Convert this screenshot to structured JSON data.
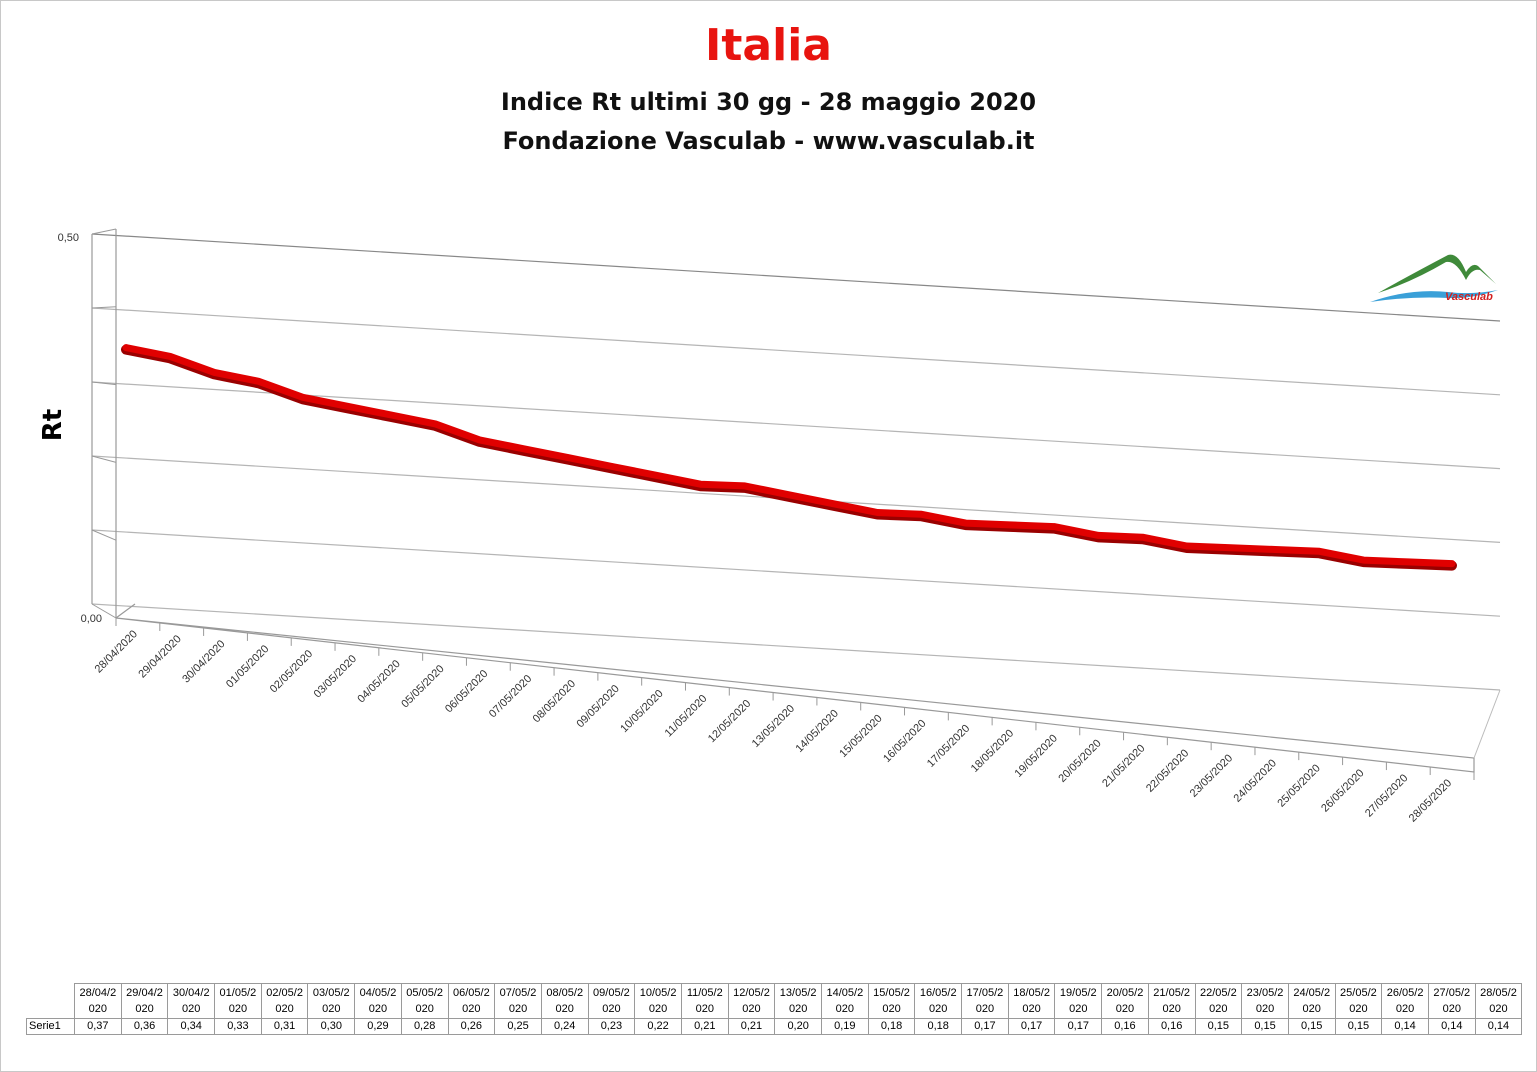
{
  "header": {
    "title": "Italia",
    "subtitle": "Indice Rt ultimi 30 gg - 28 maggio 2020",
    "source": "Fondazione Vasculab - www.vasculab.it"
  },
  "logo": {
    "text": "Vasculab"
  },
  "chart_data": {
    "type": "line",
    "style": "3d-line",
    "ylabel": "Rt",
    "ylim": [
      0,
      0.5
    ],
    "y_ticks": [
      "0,00",
      "0,50"
    ],
    "grid": true,
    "color": "#e00000",
    "categories": [
      "28/04/2020",
      "29/04/2020",
      "30/04/2020",
      "01/05/2020",
      "02/05/2020",
      "03/05/2020",
      "04/05/2020",
      "05/05/2020",
      "06/05/2020",
      "07/05/2020",
      "08/05/2020",
      "09/05/2020",
      "10/05/2020",
      "11/05/2020",
      "12/05/2020",
      "13/05/2020",
      "14/05/2020",
      "15/05/2020",
      "16/05/2020",
      "17/05/2020",
      "18/05/2020",
      "19/05/2020",
      "20/05/2020",
      "21/05/2020",
      "22/05/2020",
      "23/05/2020",
      "24/05/2020",
      "25/05/2020",
      "26/05/2020",
      "27/05/2020",
      "28/05/2020"
    ],
    "series": [
      {
        "name": "Serie1",
        "values": [
          0.37,
          0.36,
          0.34,
          0.33,
          0.31,
          0.3,
          0.29,
          0.28,
          0.26,
          0.25,
          0.24,
          0.23,
          0.22,
          0.21,
          0.21,
          0.2,
          0.19,
          0.18,
          0.18,
          0.17,
          0.17,
          0.17,
          0.16,
          0.16,
          0.15,
          0.15,
          0.15,
          0.15,
          0.14,
          0.14,
          0.14
        ],
        "value_labels": [
          "0,37",
          "0,36",
          "0,34",
          "0,33",
          "0,31",
          "0,30",
          "0,29",
          "0,28",
          "0,26",
          "0,25",
          "0,24",
          "0,23",
          "0,22",
          "0,21",
          "0,21",
          "0,20",
          "0,19",
          "0,18",
          "0,18",
          "0,17",
          "0,17",
          "0,17",
          "0,16",
          "0,16",
          "0,15",
          "0,15",
          "0,15",
          "0,15",
          "0,14",
          "0,14",
          "0,14"
        ]
      }
    ],
    "table": {
      "row_label": "Serie1",
      "header_split": [
        [
          "28/04/2",
          "020"
        ],
        [
          "29/04/2",
          "020"
        ],
        [
          "30/04/2",
          "020"
        ],
        [
          "01/05/2",
          "020"
        ],
        [
          "02/05/2",
          "020"
        ],
        [
          "03/05/2",
          "020"
        ],
        [
          "04/05/2",
          "020"
        ],
        [
          "05/05/2",
          "020"
        ],
        [
          "06/05/2",
          "020"
        ],
        [
          "07/05/2",
          "020"
        ],
        [
          "08/05/2",
          "020"
        ],
        [
          "09/05/2",
          "020"
        ],
        [
          "10/05/2",
          "020"
        ],
        [
          "11/05/2",
          "020"
        ],
        [
          "12/05/2",
          "020"
        ],
        [
          "13/05/2",
          "020"
        ],
        [
          "14/05/2",
          "020"
        ],
        [
          "15/05/2",
          "020"
        ],
        [
          "16/05/2",
          "020"
        ],
        [
          "17/05/2",
          "020"
        ],
        [
          "18/05/2",
          "020"
        ],
        [
          "19/05/2",
          "020"
        ],
        [
          "20/05/2",
          "020"
        ],
        [
          "21/05/2",
          "020"
        ],
        [
          "22/05/2",
          "020"
        ],
        [
          "23/05/2",
          "020"
        ],
        [
          "24/05/2",
          "020"
        ],
        [
          "25/05/2",
          "020"
        ],
        [
          "26/05/2",
          "020"
        ],
        [
          "27/05/2",
          "020"
        ],
        [
          "28/05/2",
          "020"
        ]
      ]
    }
  }
}
